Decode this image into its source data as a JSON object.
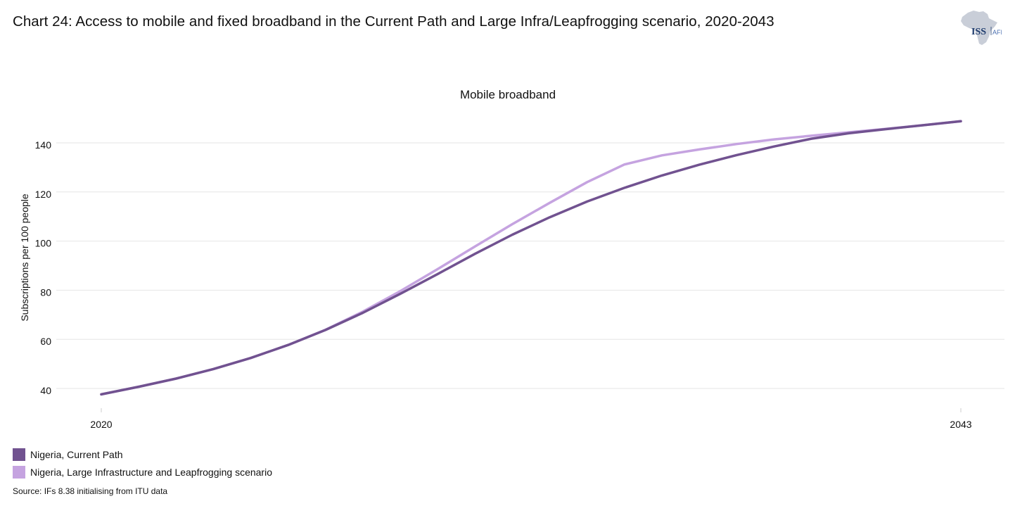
{
  "title": "Chart 24: Access to mobile and fixed broadband in the Current Path and Large Infra/Leapfrogging scenario, 2020-2043",
  "logo": {
    "text_iss": "ISS",
    "text_afi": "AFI"
  },
  "source": "Source: IFs 8.38 initialising from ITU data",
  "colors": {
    "current_path": "#715290",
    "scenario": "#c5a3e0",
    "grid": "#e6e6e6"
  },
  "chart_data": {
    "type": "line",
    "title": "Mobile broadband",
    "xlabel": "",
    "ylabel": "Subscriptions per 100 people",
    "x": [
      2020,
      2021,
      2022,
      2023,
      2024,
      2025,
      2026,
      2027,
      2028,
      2029,
      2030,
      2031,
      2032,
      2033,
      2034,
      2035,
      2036,
      2037,
      2038,
      2039,
      2040,
      2041,
      2042,
      2043
    ],
    "x_tick_labels": [
      "2020",
      "2043"
    ],
    "y_ticks": [
      40,
      60,
      80,
      100,
      120,
      140
    ],
    "ylim": [
      33,
      150
    ],
    "xlim": [
      2020,
      2043
    ],
    "grid": true,
    "legend_position": "bottom-left",
    "series": [
      {
        "name": "Nigeria, Current Path",
        "color_key": "current_path",
        "values": [
          37.6,
          40.7,
          44.0,
          47.9,
          52.4,
          57.7,
          63.8,
          70.8,
          78.5,
          86.6,
          94.8,
          102.6,
          109.7,
          116.1,
          121.7,
          126.7,
          131.1,
          135.0,
          138.5,
          141.7,
          143.9,
          145.6,
          147.2,
          148.8
        ]
      },
      {
        "name": "Nigeria, Large Infrastructure and Leapfrogging scenario",
        "color_key": "scenario",
        "values": [
          37.6,
          40.7,
          44.0,
          47.9,
          52.4,
          57.7,
          63.9,
          71.3,
          79.6,
          88.6,
          97.8,
          106.9,
          115.6,
          124.0,
          131.2,
          134.9,
          137.3,
          139.5,
          141.4,
          142.9,
          144.3,
          145.7,
          147.2,
          148.8
        ]
      }
    ]
  }
}
